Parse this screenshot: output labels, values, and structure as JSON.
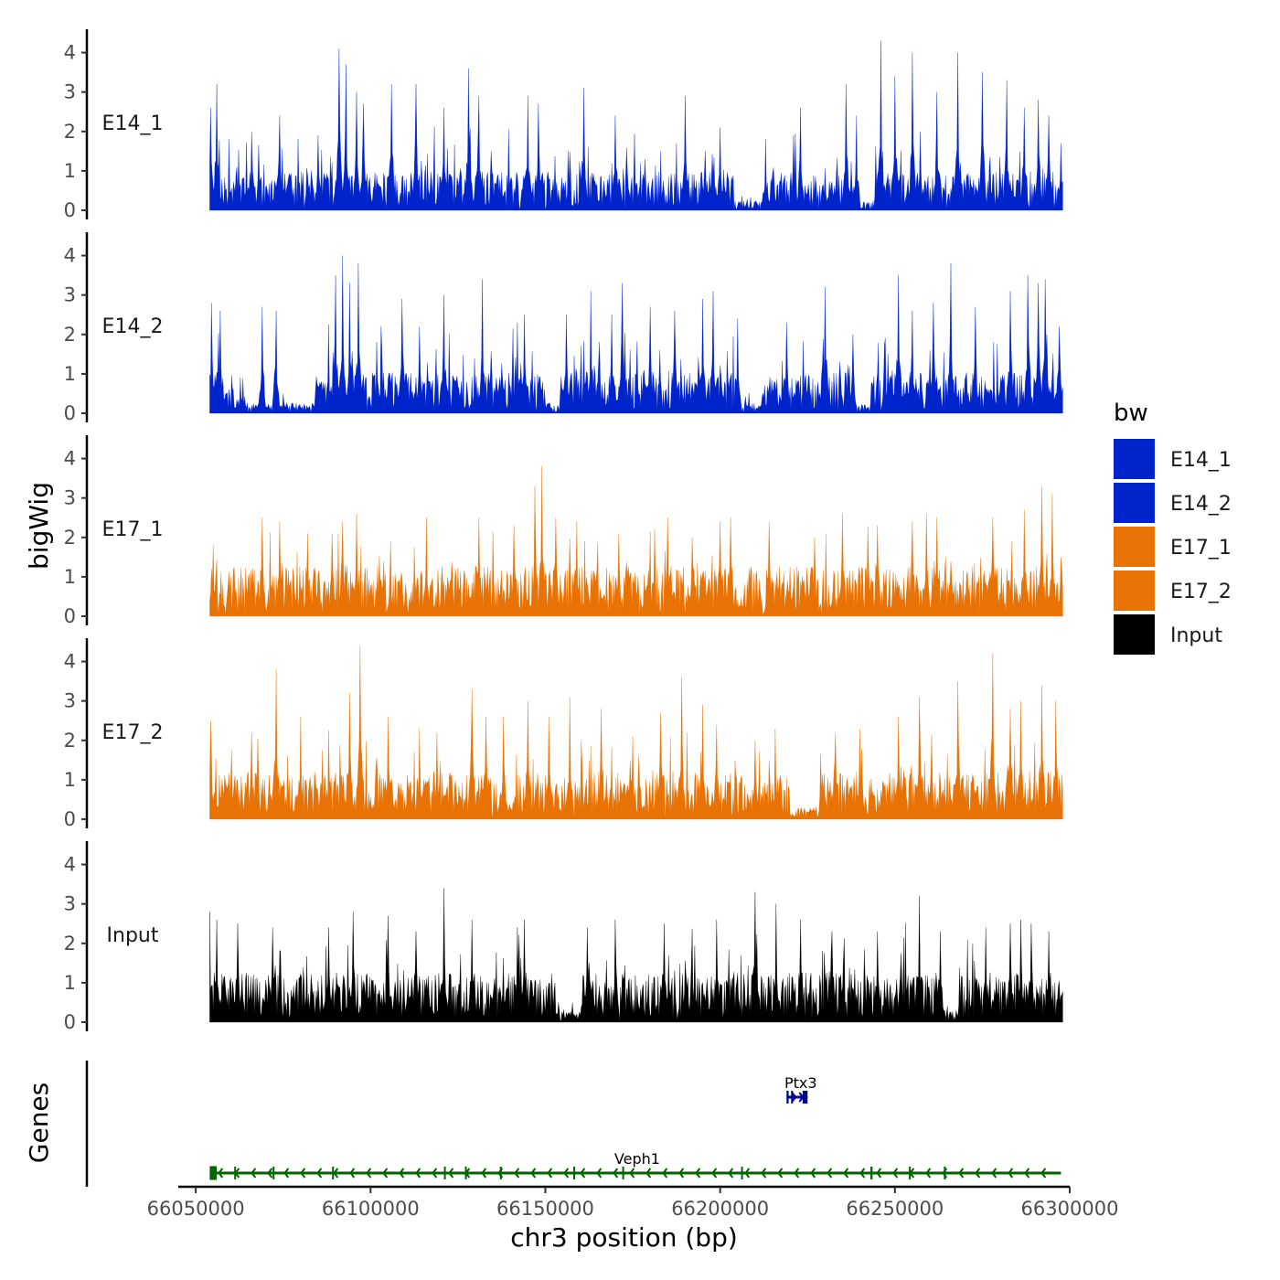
{
  "chart_data": {
    "type": "area",
    "title": "",
    "xlabel": "chr3 position (bp)",
    "ylabel": "bigWig",
    "genes_axis_label": "Genes",
    "xlim": [
      66045000,
      66300000
    ],
    "data_range": [
      66054000,
      66298000
    ],
    "x_ticks": [
      66050000,
      66100000,
      66150000,
      66200000,
      66250000,
      66300000
    ],
    "x_tick_labels": [
      "66050000",
      "66100000",
      "66150000",
      "66200000",
      "66250000",
      "66300000"
    ],
    "ylim": [
      0,
      4.5
    ],
    "y_ticks": [
      0,
      1,
      2,
      3,
      4
    ],
    "y_tick_labels": [
      "0",
      "1",
      "2",
      "3",
      "4"
    ],
    "tracks": [
      {
        "name": "E14_1",
        "color": "#0024CC",
        "baseline": 0.7,
        "variability": 0.55,
        "low_regions": [
          [
            66204000,
            66214000
          ],
          [
            66238000,
            66244000
          ]
        ],
        "peaks": [
          [
            66054300,
            2.6
          ],
          [
            66056000,
            3.2
          ],
          [
            66066000,
            2.0
          ],
          [
            66074000,
            2.4
          ],
          [
            66085000,
            1.9
          ],
          [
            66091000,
            4.1
          ],
          [
            66093000,
            3.7
          ],
          [
            66096000,
            3.0
          ],
          [
            66098000,
            2.7
          ],
          [
            66106000,
            3.2
          ],
          [
            66113000,
            3.2
          ],
          [
            66121000,
            2.6
          ],
          [
            66128000,
            3.6
          ],
          [
            66131000,
            2.9
          ],
          [
            66145000,
            2.9
          ],
          [
            66148000,
            2.7
          ],
          [
            66161000,
            3.1
          ],
          [
            66170000,
            2.4
          ],
          [
            66190000,
            2.9
          ],
          [
            66200000,
            2.1
          ],
          [
            66213000,
            1.8
          ],
          [
            66221000,
            1.9
          ],
          [
            66223000,
            2.6
          ],
          [
            66236000,
            3.2
          ],
          [
            66239000,
            2.4
          ],
          [
            66246000,
            4.3
          ],
          [
            66250000,
            3.4
          ],
          [
            66255000,
            4.0
          ],
          [
            66262000,
            3.0
          ],
          [
            66268000,
            4.0
          ],
          [
            66275000,
            3.5
          ],
          [
            66282000,
            3.3
          ],
          [
            66287000,
            2.6
          ],
          [
            66291000,
            2.8
          ],
          [
            66294000,
            2.4
          ],
          [
            66297500,
            1.7
          ]
        ]
      },
      {
        "name": "E14_2",
        "color": "#0024CC",
        "baseline": 0.75,
        "variability": 0.6,
        "low_regions": [
          [
            66064000,
            66084000
          ],
          [
            66150000,
            66154000
          ],
          [
            66205000,
            66212000
          ],
          [
            66238000,
            66243000
          ]
        ],
        "peaks": [
          [
            66054500,
            2.8
          ],
          [
            66057000,
            2.6
          ],
          [
            66069000,
            2.7
          ],
          [
            66073000,
            2.6
          ],
          [
            66090000,
            3.5
          ],
          [
            66092000,
            4.0
          ],
          [
            66094000,
            3.3
          ],
          [
            66096500,
            3.8
          ],
          [
            66109000,
            2.9
          ],
          [
            66114000,
            2.2
          ],
          [
            66121000,
            3.0
          ],
          [
            66132000,
            3.4
          ],
          [
            66142000,
            2.3
          ],
          [
            66144000,
            2.5
          ],
          [
            66156000,
            2.5
          ],
          [
            66163000,
            3.1
          ],
          [
            66169000,
            2.5
          ],
          [
            66172000,
            3.3
          ],
          [
            66180000,
            2.7
          ],
          [
            66187000,
            2.6
          ],
          [
            66195000,
            2.9
          ],
          [
            66198000,
            3.1
          ],
          [
            66205000,
            2.4
          ],
          [
            66219000,
            2.3
          ],
          [
            66230000,
            3.2
          ],
          [
            66238000,
            2.0
          ],
          [
            66251000,
            3.5
          ],
          [
            66255000,
            2.6
          ],
          [
            66261000,
            2.8
          ],
          [
            66266000,
            3.8
          ],
          [
            66273000,
            2.7
          ],
          [
            66283000,
            3.1
          ],
          [
            66288000,
            3.5
          ],
          [
            66291000,
            3.3
          ],
          [
            66293000,
            3.4
          ],
          [
            66297000,
            2.2
          ]
        ]
      },
      {
        "name": "E17_1",
        "color": "#E87203",
        "baseline": 0.9,
        "variability": 0.45,
        "low_regions": [],
        "peaks": [
          [
            66055000,
            1.8
          ],
          [
            66069000,
            2.5
          ],
          [
            66074000,
            2.4
          ],
          [
            66082000,
            2.1
          ],
          [
            66089000,
            2.1
          ],
          [
            66092000,
            2.4
          ],
          [
            66096000,
            2.6
          ],
          [
            66116000,
            2.5
          ],
          [
            66131000,
            2.5
          ],
          [
            66141000,
            2.3
          ],
          [
            66147000,
            3.3
          ],
          [
            66149000,
            3.8
          ],
          [
            66153000,
            2.5
          ],
          [
            66159000,
            2.4
          ],
          [
            66171000,
            2.1
          ],
          [
            66185000,
            2.5
          ],
          [
            66192000,
            2.0
          ],
          [
            66200000,
            2.4
          ],
          [
            66203000,
            2.5
          ],
          [
            66214000,
            2.4
          ],
          [
            66227000,
            2.0
          ],
          [
            66235000,
            2.6
          ],
          [
            66245000,
            2.3
          ],
          [
            66255000,
            2.4
          ],
          [
            66259000,
            2.6
          ],
          [
            66262000,
            2.5
          ],
          [
            66278000,
            2.5
          ],
          [
            66287000,
            2.7
          ],
          [
            66292000,
            3.3
          ],
          [
            66295000,
            3.1
          ],
          [
            66297500,
            1.5
          ]
        ]
      },
      {
        "name": "E17_2",
        "color": "#E87203",
        "baseline": 0.85,
        "variability": 0.5,
        "low_regions": [
          [
            66220000,
            66228000
          ]
        ],
        "peaks": [
          [
            66054200,
            2.5
          ],
          [
            66066000,
            2.2
          ],
          [
            66073000,
            3.8
          ],
          [
            66080000,
            2.6
          ],
          [
            66094000,
            3.2
          ],
          [
            66097000,
            4.4
          ],
          [
            66105000,
            2.6
          ],
          [
            66114000,
            2.3
          ],
          [
            66119000,
            2.2
          ],
          [
            66129000,
            3.3
          ],
          [
            66133000,
            2.6
          ],
          [
            66138000,
            2.6
          ],
          [
            66145000,
            3.0
          ],
          [
            66151000,
            2.6
          ],
          [
            66157000,
            3.1
          ],
          [
            66166000,
            2.8
          ],
          [
            66175000,
            2.1
          ],
          [
            66183000,
            2.7
          ],
          [
            66189000,
            3.6
          ],
          [
            66195000,
            2.9
          ],
          [
            66199000,
            2.4
          ],
          [
            66210000,
            2.0
          ],
          [
            66233000,
            2.2
          ],
          [
            66240000,
            2.3
          ],
          [
            66251000,
            2.6
          ],
          [
            66257000,
            3.1
          ],
          [
            66268000,
            3.5
          ],
          [
            66278000,
            4.2
          ],
          [
            66283000,
            2.8
          ],
          [
            66286000,
            3.0
          ],
          [
            66292000,
            3.4
          ],
          [
            66296000,
            3.0
          ]
        ]
      },
      {
        "name": "Input",
        "color": "#000000",
        "baseline": 0.9,
        "variability": 0.45,
        "low_regions": [
          [
            66153000,
            66160000
          ],
          [
            66263000,
            66268000
          ]
        ],
        "peaks": [
          [
            66054000,
            2.8
          ],
          [
            66056000,
            2.6
          ],
          [
            66062000,
            2.5
          ],
          [
            66072000,
            2.4
          ],
          [
            66088000,
            2.4
          ],
          [
            66095000,
            2.8
          ],
          [
            66105000,
            2.7
          ],
          [
            66113000,
            2.3
          ],
          [
            66121000,
            3.4
          ],
          [
            66129000,
            2.6
          ],
          [
            66142000,
            2.4
          ],
          [
            66144000,
            2.6
          ],
          [
            66162000,
            2.4
          ],
          [
            66170000,
            2.6
          ],
          [
            66184000,
            2.5
          ],
          [
            66199000,
            2.6
          ],
          [
            66210000,
            3.3
          ],
          [
            66216000,
            3.0
          ],
          [
            66223000,
            2.6
          ],
          [
            66232000,
            2.3
          ],
          [
            66245000,
            2.3
          ],
          [
            66257000,
            3.2
          ],
          [
            66263000,
            2.3
          ],
          [
            66276000,
            2.4
          ],
          [
            66283000,
            2.5
          ],
          [
            66286000,
            2.6
          ],
          [
            66289000,
            2.5
          ],
          [
            66294000,
            2.3
          ]
        ]
      }
    ],
    "legend": {
      "title": "bw",
      "position": "right",
      "entries": [
        {
          "name": "E14_1",
          "color": "#0024CC"
        },
        {
          "name": "E14_2",
          "color": "#0024CC"
        },
        {
          "name": "E17_1",
          "color": "#E87203"
        },
        {
          "name": "E17_2",
          "color": "#E87203"
        },
        {
          "name": "Input",
          "color": "#000000"
        }
      ]
    },
    "genes": [
      {
        "name": "Veph1",
        "strand": "-",
        "start": 66054000,
        "end": 66297500,
        "color": "#006400",
        "row": 1,
        "exons": [
          [
            66054000,
            66056000
          ],
          [
            66061000,
            66061300
          ],
          [
            66072000,
            66072300
          ],
          [
            66089000,
            66089300
          ],
          [
            66121000,
            66121300
          ],
          [
            66127000,
            66127300
          ],
          [
            66137000,
            66137300
          ],
          [
            66158000,
            66158300
          ],
          [
            66172000,
            66172300
          ],
          [
            66206000,
            66206300
          ],
          [
            66243000,
            66243600
          ],
          [
            66254000,
            66254300
          ],
          [
            66264000,
            66264300
          ]
        ]
      },
      {
        "name": "Ptx3",
        "strand": "+",
        "start": 66219000,
        "end": 66225000,
        "color": "#00008B",
        "row": 2,
        "exons": [
          [
            66219000,
            66219600
          ],
          [
            66220300,
            66220700
          ],
          [
            66223600,
            66225000
          ]
        ]
      }
    ]
  }
}
